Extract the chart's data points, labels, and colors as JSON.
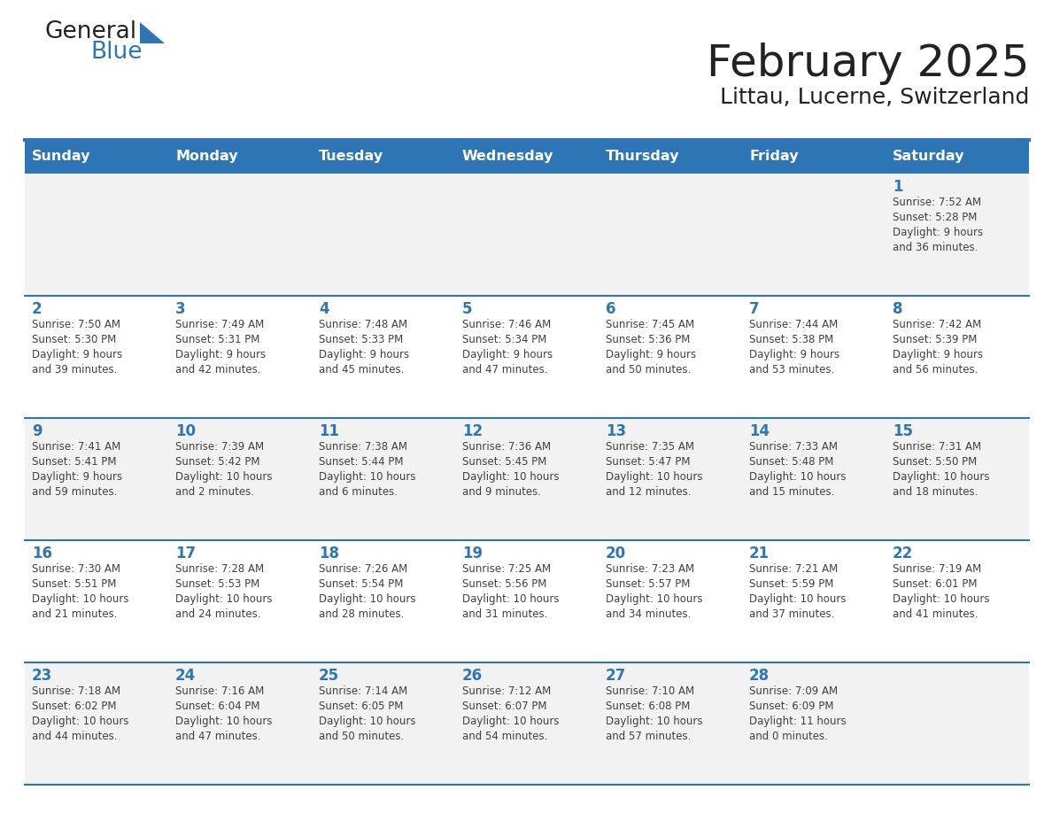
{
  "title": "February 2025",
  "subtitle": "Littau, Lucerne, Switzerland",
  "days_of_week": [
    "Sunday",
    "Monday",
    "Tuesday",
    "Wednesday",
    "Thursday",
    "Friday",
    "Saturday"
  ],
  "header_bg": "#2E75B6",
  "header_text": "#FFFFFF",
  "cell_bg_odd": "#F2F2F2",
  "cell_bg_even": "#FFFFFF",
  "day_num_color": "#2E75B6",
  "info_text_color": "#404040",
  "divider_color": "#2E75B6",
  "title_color": "#222222",
  "subtitle_color": "#222222",
  "logo_general_color": "#222222",
  "logo_blue_color": "#2E75B6",
  "logo_tri_color": "#2E75B6",
  "calendar_data": [
    [
      null,
      null,
      null,
      null,
      null,
      null,
      {
        "day": 1,
        "sunrise": "7:52 AM",
        "sunset": "5:28 PM",
        "daylight": "9 hours and 36 minutes."
      }
    ],
    [
      {
        "day": 2,
        "sunrise": "7:50 AM",
        "sunset": "5:30 PM",
        "daylight": "9 hours and 39 minutes."
      },
      {
        "day": 3,
        "sunrise": "7:49 AM",
        "sunset": "5:31 PM",
        "daylight": "9 hours and 42 minutes."
      },
      {
        "day": 4,
        "sunrise": "7:48 AM",
        "sunset": "5:33 PM",
        "daylight": "9 hours and 45 minutes."
      },
      {
        "day": 5,
        "sunrise": "7:46 AM",
        "sunset": "5:34 PM",
        "daylight": "9 hours and 47 minutes."
      },
      {
        "day": 6,
        "sunrise": "7:45 AM",
        "sunset": "5:36 PM",
        "daylight": "9 hours and 50 minutes."
      },
      {
        "day": 7,
        "sunrise": "7:44 AM",
        "sunset": "5:38 PM",
        "daylight": "9 hours and 53 minutes."
      },
      {
        "day": 8,
        "sunrise": "7:42 AM",
        "sunset": "5:39 PM",
        "daylight": "9 hours and 56 minutes."
      }
    ],
    [
      {
        "day": 9,
        "sunrise": "7:41 AM",
        "sunset": "5:41 PM",
        "daylight": "9 hours and 59 minutes."
      },
      {
        "day": 10,
        "sunrise": "7:39 AM",
        "sunset": "5:42 PM",
        "daylight": "10 hours and 2 minutes."
      },
      {
        "day": 11,
        "sunrise": "7:38 AM",
        "sunset": "5:44 PM",
        "daylight": "10 hours and 6 minutes."
      },
      {
        "day": 12,
        "sunrise": "7:36 AM",
        "sunset": "5:45 PM",
        "daylight": "10 hours and 9 minutes."
      },
      {
        "day": 13,
        "sunrise": "7:35 AM",
        "sunset": "5:47 PM",
        "daylight": "10 hours and 12 minutes."
      },
      {
        "day": 14,
        "sunrise": "7:33 AM",
        "sunset": "5:48 PM",
        "daylight": "10 hours and 15 minutes."
      },
      {
        "day": 15,
        "sunrise": "7:31 AM",
        "sunset": "5:50 PM",
        "daylight": "10 hours and 18 minutes."
      }
    ],
    [
      {
        "day": 16,
        "sunrise": "7:30 AM",
        "sunset": "5:51 PM",
        "daylight": "10 hours and 21 minutes."
      },
      {
        "day": 17,
        "sunrise": "7:28 AM",
        "sunset": "5:53 PM",
        "daylight": "10 hours and 24 minutes."
      },
      {
        "day": 18,
        "sunrise": "7:26 AM",
        "sunset": "5:54 PM",
        "daylight": "10 hours and 28 minutes."
      },
      {
        "day": 19,
        "sunrise": "7:25 AM",
        "sunset": "5:56 PM",
        "daylight": "10 hours and 31 minutes."
      },
      {
        "day": 20,
        "sunrise": "7:23 AM",
        "sunset": "5:57 PM",
        "daylight": "10 hours and 34 minutes."
      },
      {
        "day": 21,
        "sunrise": "7:21 AM",
        "sunset": "5:59 PM",
        "daylight": "10 hours and 37 minutes."
      },
      {
        "day": 22,
        "sunrise": "7:19 AM",
        "sunset": "6:01 PM",
        "daylight": "10 hours and 41 minutes."
      }
    ],
    [
      {
        "day": 23,
        "sunrise": "7:18 AM",
        "sunset": "6:02 PM",
        "daylight": "10 hours and 44 minutes."
      },
      {
        "day": 24,
        "sunrise": "7:16 AM",
        "sunset": "6:04 PM",
        "daylight": "10 hours and 47 minutes."
      },
      {
        "day": 25,
        "sunrise": "7:14 AM",
        "sunset": "6:05 PM",
        "daylight": "10 hours and 50 minutes."
      },
      {
        "day": 26,
        "sunrise": "7:12 AM",
        "sunset": "6:07 PM",
        "daylight": "10 hours and 54 minutes."
      },
      {
        "day": 27,
        "sunrise": "7:10 AM",
        "sunset": "6:08 PM",
        "daylight": "10 hours and 57 minutes."
      },
      {
        "day": 28,
        "sunrise": "7:09 AM",
        "sunset": "6:09 PM",
        "daylight": "11 hours and 0 minutes."
      },
      null
    ]
  ]
}
